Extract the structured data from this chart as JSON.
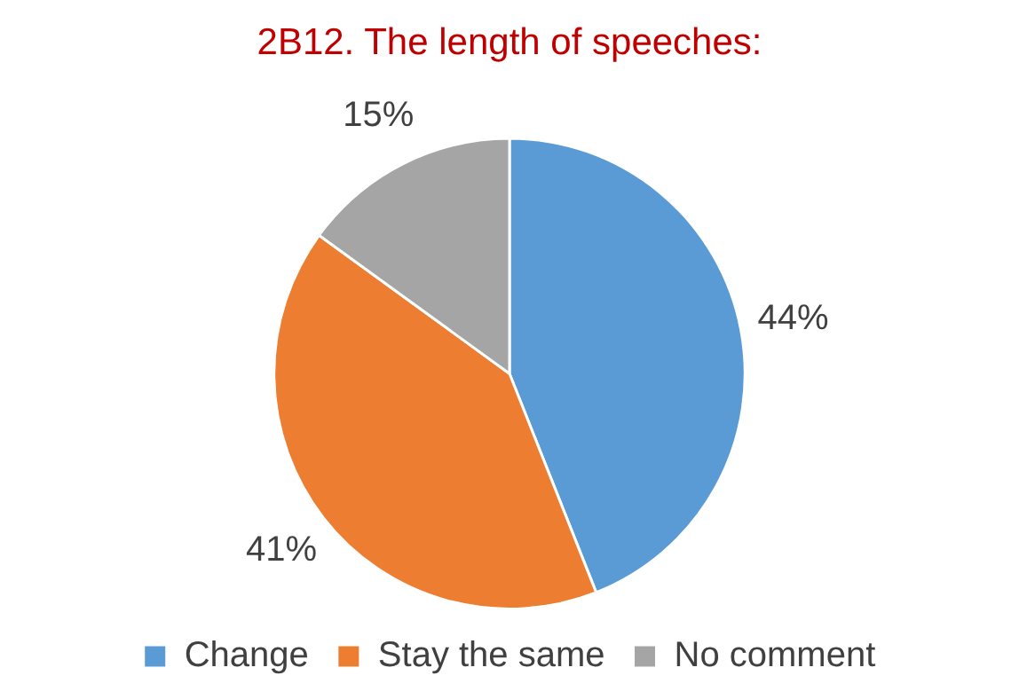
{
  "chart_data": {
    "type": "pie",
    "title": "2B12. The length of speeches:",
    "categories": [
      "Change",
      "Stay the same",
      "No comment"
    ],
    "values": [
      44,
      41,
      15
    ],
    "colors": [
      "#5b9bd5",
      "#ed7d31",
      "#a5a5a5"
    ],
    "value_labels": [
      "44%",
      "41%",
      "15%"
    ],
    "legend": "bottom"
  }
}
